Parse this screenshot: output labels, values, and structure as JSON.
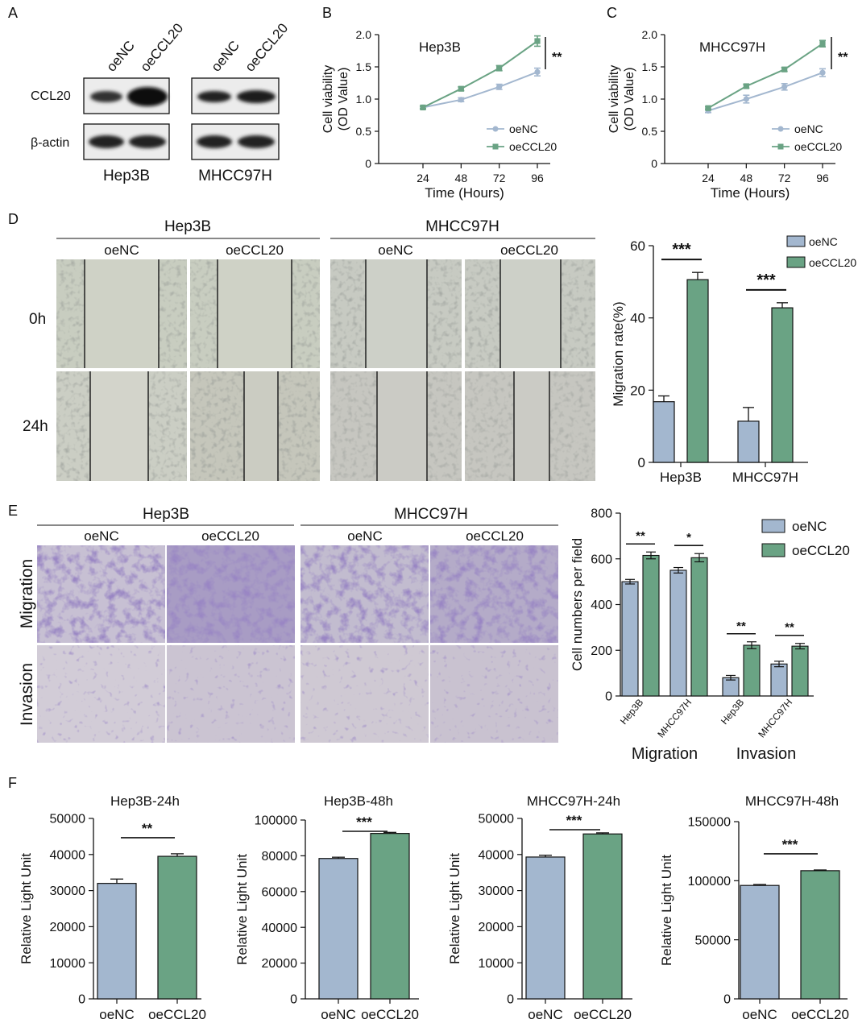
{
  "colors": {
    "oeNC": "#a3b7cf",
    "oeCCL20": "#6aa384",
    "axis": "#111111",
    "bg": "#ffffff"
  },
  "panels": {
    "A": {
      "letter": "A",
      "groups": [
        {
          "cell_line": "Hep3B",
          "lanes": [
            "oeNC",
            "oeCCL20"
          ]
        },
        {
          "cell_line": "MHCC97H",
          "lanes": [
            "oeNC",
            "oeCCL20"
          ]
        }
      ],
      "rows": [
        "CCL20",
        "β-actin"
      ]
    },
    "D": {
      "letter": "D",
      "groups": [
        {
          "cell_line": "Hep3B",
          "conditions": [
            "oeNC",
            "oeCCL20"
          ]
        },
        {
          "cell_line": "MHCC97H",
          "conditions": [
            "oeNC",
            "oeCCL20"
          ]
        }
      ],
      "rows": [
        "0h",
        "24h"
      ]
    },
    "E": {
      "letter": "E",
      "groups": [
        {
          "cell_line": "Hep3B",
          "conditions": [
            "oeNC",
            "oeCCL20"
          ]
        },
        {
          "cell_line": "MHCC97H",
          "conditions": [
            "oeNC",
            "oeCCL20"
          ]
        }
      ],
      "rows": [
        "Migration",
        "Invasion"
      ]
    },
    "F": {
      "letter": "F"
    }
  },
  "chart_data": [
    {
      "id": "B",
      "panel_letter": "B",
      "type": "line",
      "title": "Hep3B",
      "xlabel": "Time (Hours)",
      "ylabel": [
        "Cell viability",
        "(OD Value)"
      ],
      "x": [
        24,
        48,
        72,
        96
      ],
      "ylim": [
        0,
        2.0
      ],
      "yticks": [
        "0",
        "0.5",
        "1.0",
        "1.5",
        "2.0"
      ],
      "series": [
        {
          "name": "oeNC",
          "values": [
            0.87,
            0.99,
            1.19,
            1.42
          ],
          "err": [
            0.02,
            0.03,
            0.04,
            0.06
          ]
        },
        {
          "name": "oeCCL20",
          "values": [
            0.87,
            1.16,
            1.48,
            1.9
          ],
          "err": [
            0.02,
            0.03,
            0.04,
            0.08
          ]
        }
      ],
      "significance": "**",
      "legend_position": "bottom-right"
    },
    {
      "id": "C",
      "panel_letter": "C",
      "type": "line",
      "title": "MHCC97H",
      "xlabel": "Time (Hours)",
      "ylabel": [
        "Cell viability",
        "(OD Value)"
      ],
      "x": [
        24,
        48,
        72,
        96
      ],
      "ylim": [
        0,
        2.0
      ],
      "yticks": [
        "0",
        "0.5",
        "1.0",
        "1.5",
        "2.0"
      ],
      "series": [
        {
          "name": "oeNC",
          "values": [
            0.82,
            1.0,
            1.19,
            1.41
          ],
          "err": [
            0.03,
            0.06,
            0.05,
            0.06
          ]
        },
        {
          "name": "oeCCL20",
          "values": [
            0.86,
            1.2,
            1.46,
            1.86
          ],
          "err": [
            0.02,
            0.03,
            0.03,
            0.05
          ]
        }
      ],
      "significance": "**",
      "legend_position": "bottom-right"
    },
    {
      "id": "D",
      "type": "bar",
      "ylabel": "Migration rate(%)",
      "categories": [
        "Hep3B",
        "MHCC97H"
      ],
      "ylim": [
        0,
        60
      ],
      "yticks": [
        "0",
        "20",
        "40",
        "60"
      ],
      "series": [
        {
          "name": "oeNC",
          "values": [
            16.8,
            11.4
          ],
          "err": [
            1.6,
            3.8
          ]
        },
        {
          "name": "oeCCL20",
          "values": [
            50.6,
            42.8
          ],
          "err": [
            2.0,
            1.4
          ]
        }
      ],
      "significance": [
        "***",
        "***"
      ],
      "legend_position": "top-right"
    },
    {
      "id": "E",
      "type": "bar",
      "ylabel": "Cell numbers per field",
      "categories": [
        "Hep3B",
        "MHCC97H",
        "Hep3B",
        "MHCC97H"
      ],
      "category_groups": [
        "Migration",
        "Invasion"
      ],
      "ylim": [
        0,
        800
      ],
      "yticks": [
        "0",
        "200",
        "400",
        "600",
        "800"
      ],
      "series": [
        {
          "name": "oeNC",
          "values": [
            500,
            550,
            80,
            140
          ],
          "err": [
            10,
            12,
            10,
            12
          ]
        },
        {
          "name": "oeCCL20",
          "values": [
            615,
            605,
            222,
            218
          ],
          "err": [
            15,
            18,
            15,
            12
          ]
        }
      ],
      "significance": [
        "**",
        "*",
        "**",
        "**"
      ],
      "legend_position": "top-right"
    },
    {
      "id": "F1",
      "type": "bar",
      "title": "Hep3B-24h",
      "ylabel": "Relative Light Unit",
      "categories": [
        "oeNC",
        "oeCCL20"
      ],
      "values": [
        32000,
        39500
      ],
      "err": [
        1200,
        700
      ],
      "ylim": [
        0,
        50000
      ],
      "yticks": [
        "0",
        "10000",
        "20000",
        "30000",
        "40000",
        "50000"
      ],
      "significance": "**"
    },
    {
      "id": "F2",
      "type": "bar",
      "title": "Hep3B-48h",
      "ylabel": "Relative Light Unit",
      "categories": [
        "oeNC",
        "oeCCL20"
      ],
      "values": [
        78500,
        92500
      ],
      "err": [
        700,
        600
      ],
      "ylim": [
        0,
        100000
      ],
      "yticks": [
        "0",
        "20000",
        "40000",
        "60000",
        "80000",
        "100000"
      ],
      "significance": "***"
    },
    {
      "id": "F3",
      "type": "bar",
      "title": "MHCC97H-24h",
      "ylabel": "Relative Light Unit",
      "categories": [
        "oeNC",
        "oeCCL20"
      ],
      "values": [
        39300,
        45700
      ],
      "err": [
        500,
        300
      ],
      "ylim": [
        0,
        50000
      ],
      "yticks": [
        "0",
        "10000",
        "20000",
        "30000",
        "40000",
        "50000"
      ],
      "significance": "***"
    },
    {
      "id": "F4",
      "type": "bar",
      "title": "MHCC97H-48h",
      "ylabel": "Relative Light Unit",
      "categories": [
        "oeNC",
        "oeCCL20"
      ],
      "values": [
        96000,
        108500
      ],
      "err": [
        800,
        600
      ],
      "ylim": [
        0,
        150000
      ],
      "yticks": [
        "0",
        "50000",
        "100000",
        "150000"
      ],
      "significance": "***"
    }
  ]
}
